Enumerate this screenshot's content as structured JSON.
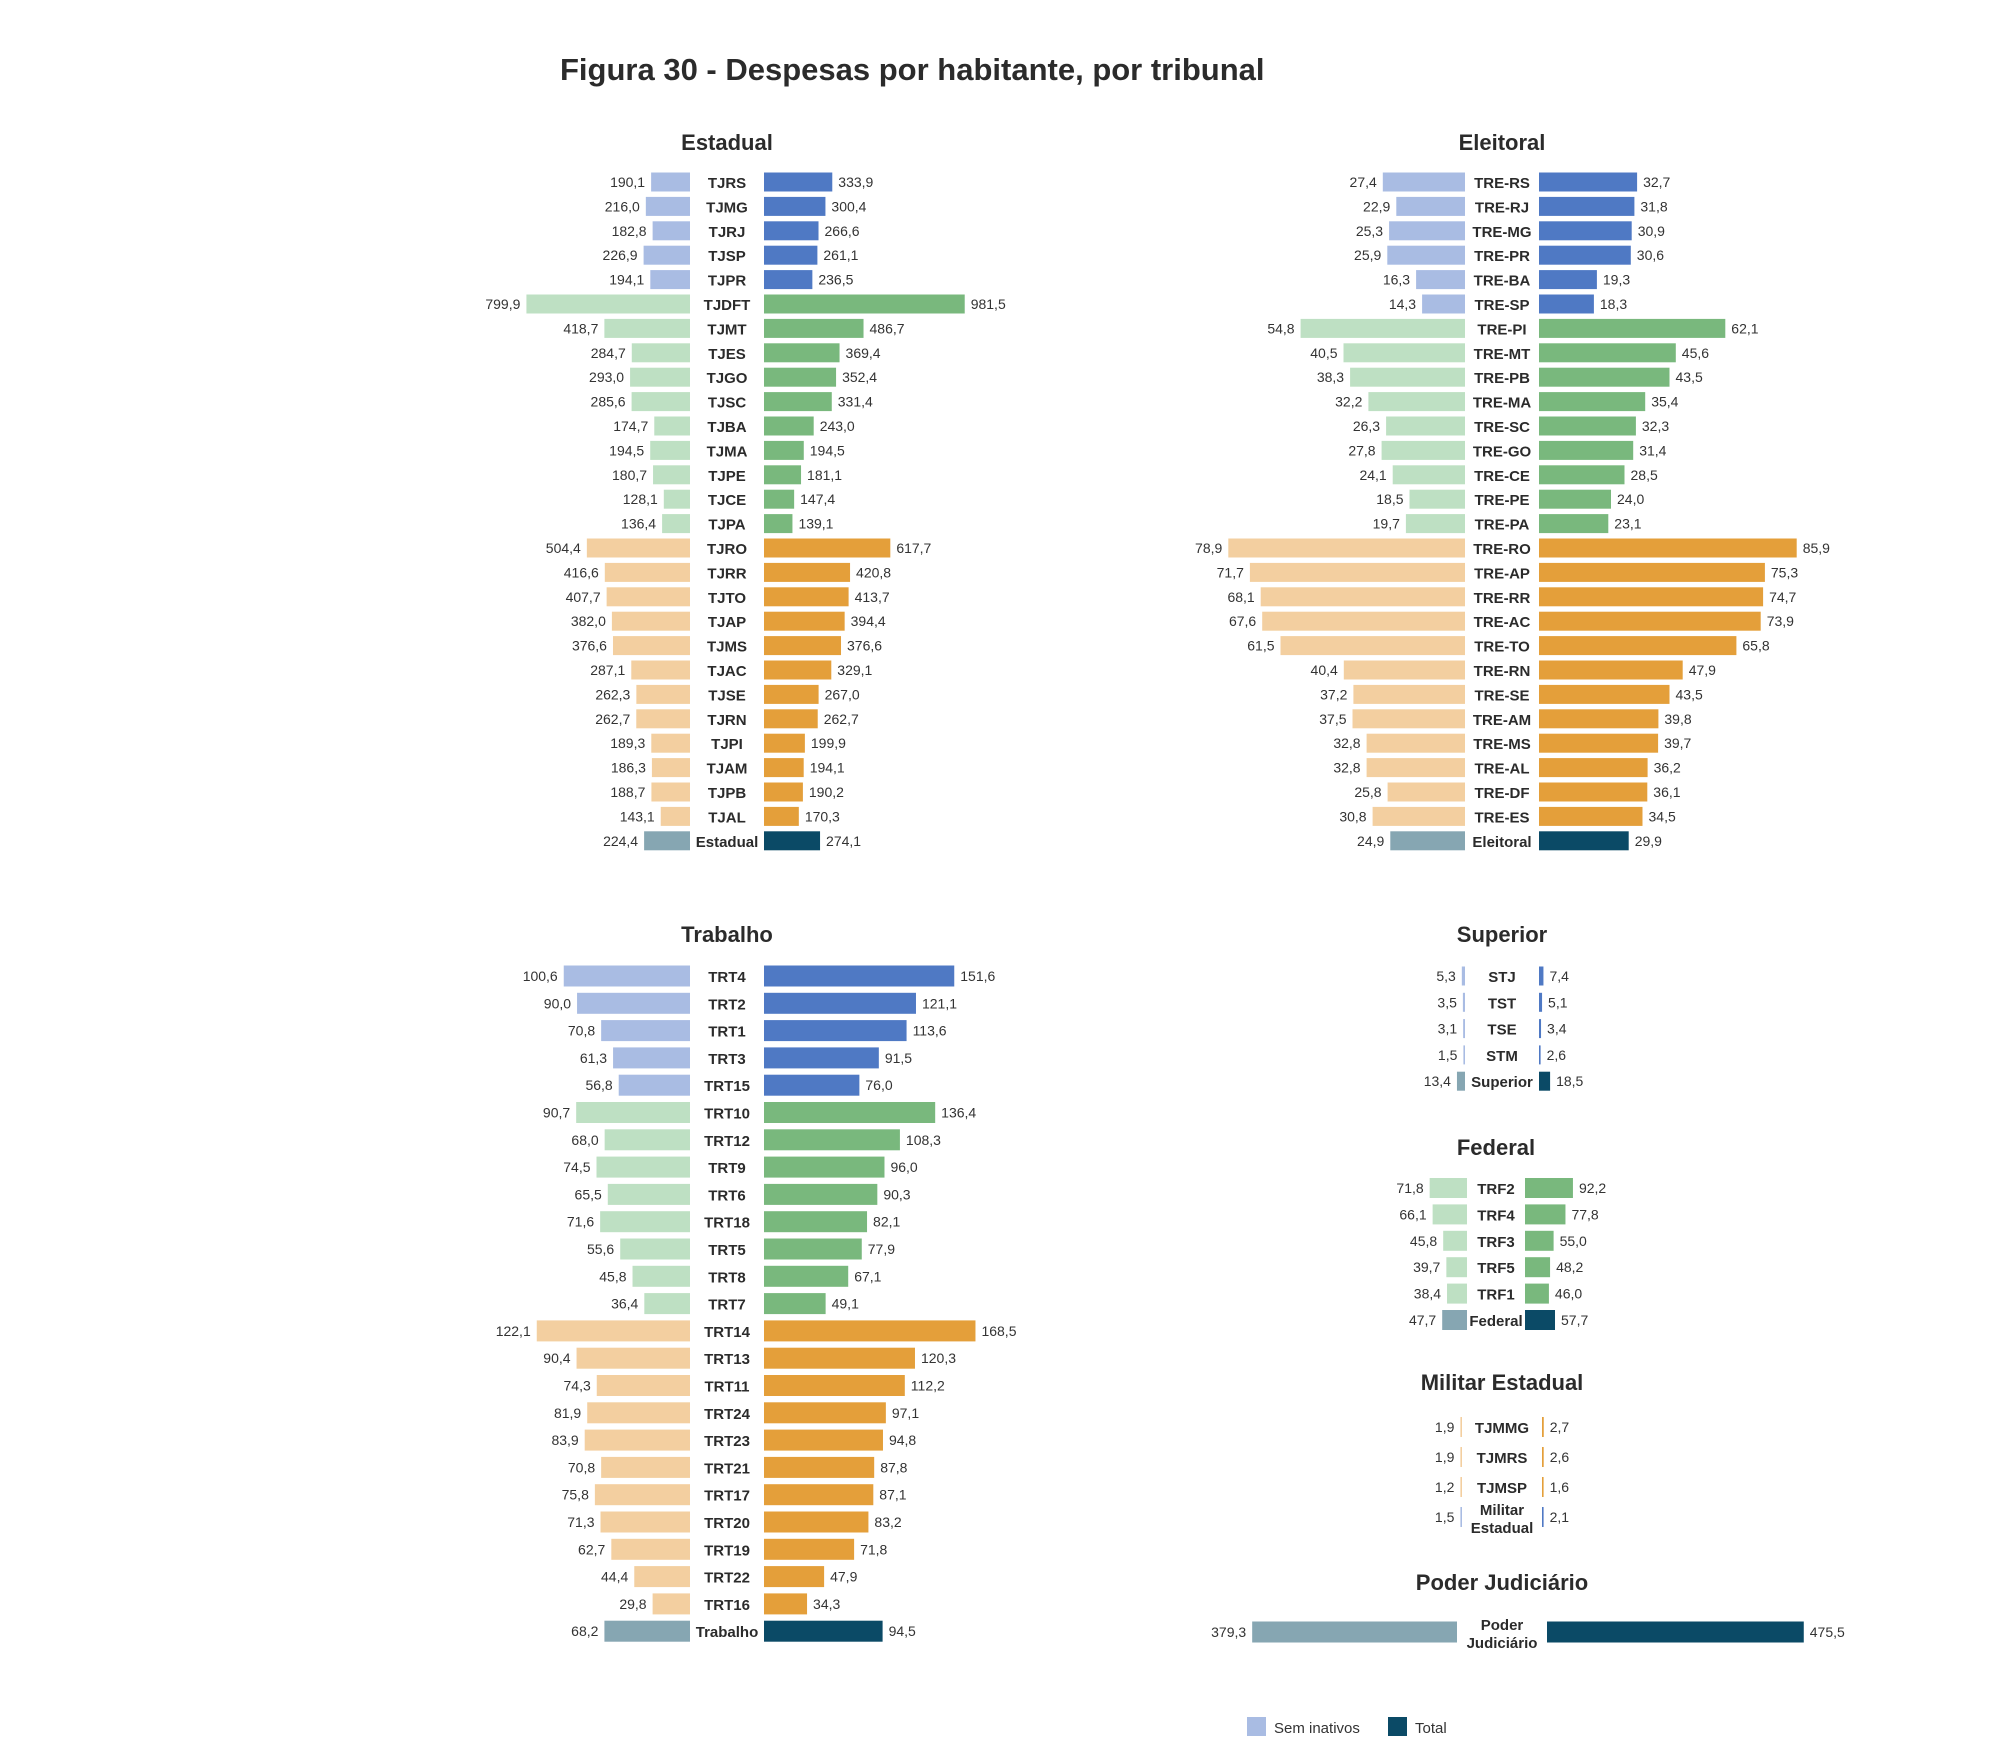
{
  "title": "Figura 30 - Despesas por habitante, por tribunal",
  "colors": {
    "light": {
      "blue": "#a9bce3",
      "green": "#bee0c3",
      "orange": "#f3cfa0",
      "total": "#86a6b2",
      "line": "#a9bce3"
    },
    "dark": {
      "blue": "#4f79c4",
      "green": "#79b87d",
      "orange": "#e49f3a",
      "total": "#0b4a66",
      "line": "#4f79c4"
    }
  },
  "legend": [
    {
      "label": "Sem inativos",
      "color": "#a9bce3"
    },
    {
      "label": "Total",
      "color": "#0b4a66"
    }
  ],
  "chart_data": [
    {
      "type": "bar",
      "title": "Estadual",
      "series": [
        {
          "name": "Sem inativos"
        },
        {
          "name": "Total"
        }
      ],
      "rows": [
        {
          "label": "TJRS",
          "sem": "190,1",
          "tot": "333,9",
          "group": "blue"
        },
        {
          "label": "TJMG",
          "sem": "216,0",
          "tot": "300,4",
          "group": "blue"
        },
        {
          "label": "TJRJ",
          "sem": "182,8",
          "tot": "266,6",
          "group": "blue"
        },
        {
          "label": "TJSP",
          "sem": "226,9",
          "tot": "261,1",
          "group": "blue"
        },
        {
          "label": "TJPR",
          "sem": "194,1",
          "tot": "236,5",
          "group": "blue"
        },
        {
          "label": "TJDFT",
          "sem": "799,9",
          "tot": "981,5",
          "group": "green"
        },
        {
          "label": "TJMT",
          "sem": "418,7",
          "tot": "486,7",
          "group": "green"
        },
        {
          "label": "TJES",
          "sem": "284,7",
          "tot": "369,4",
          "group": "green"
        },
        {
          "label": "TJGO",
          "sem": "293,0",
          "tot": "352,4",
          "group": "green"
        },
        {
          "label": "TJSC",
          "sem": "285,6",
          "tot": "331,4",
          "group": "green"
        },
        {
          "label": "TJBA",
          "sem": "174,7",
          "tot": "243,0",
          "group": "green"
        },
        {
          "label": "TJMA",
          "sem": "194,5",
          "tot": "194,5",
          "group": "green"
        },
        {
          "label": "TJPE",
          "sem": "180,7",
          "tot": "181,1",
          "group": "green"
        },
        {
          "label": "TJCE",
          "sem": "128,1",
          "tot": "147,4",
          "group": "green"
        },
        {
          "label": "TJPA",
          "sem": "136,4",
          "tot": "139,1",
          "group": "green"
        },
        {
          "label": "TJRO",
          "sem": "504,4",
          "tot": "617,7",
          "group": "orange"
        },
        {
          "label": "TJRR",
          "sem": "416,6",
          "tot": "420,8",
          "group": "orange"
        },
        {
          "label": "TJTO",
          "sem": "407,7",
          "tot": "413,7",
          "group": "orange"
        },
        {
          "label": "TJAP",
          "sem": "382,0",
          "tot": "394,4",
          "group": "orange"
        },
        {
          "label": "TJMS",
          "sem": "376,6",
          "tot": "376,6",
          "group": "orange"
        },
        {
          "label": "TJAC",
          "sem": "287,1",
          "tot": "329,1",
          "group": "orange"
        },
        {
          "label": "TJSE",
          "sem": "262,3",
          "tot": "267,0",
          "group": "orange"
        },
        {
          "label": "TJRN",
          "sem": "262,7",
          "tot": "262,7",
          "group": "orange"
        },
        {
          "label": "TJPI",
          "sem": "189,3",
          "tot": "199,9",
          "group": "orange"
        },
        {
          "label": "TJAM",
          "sem": "186,3",
          "tot": "194,1",
          "group": "orange"
        },
        {
          "label": "TJPB",
          "sem": "188,7",
          "tot": "190,2",
          "group": "orange"
        },
        {
          "label": "TJAL",
          "sem": "143,1",
          "tot": "170,3",
          "group": "orange"
        },
        {
          "label": "Estadual",
          "sem": "224,4",
          "tot": "274,1",
          "group": "total"
        }
      ]
    },
    {
      "type": "bar",
      "title": "Eleitoral",
      "series": [
        {
          "name": "Sem inativos"
        },
        {
          "name": "Total"
        }
      ],
      "rows": [
        {
          "label": "TRE-RS",
          "sem": "27,4",
          "tot": "32,7",
          "group": "blue"
        },
        {
          "label": "TRE-RJ",
          "sem": "22,9",
          "tot": "31,8",
          "group": "blue"
        },
        {
          "label": "TRE-MG",
          "sem": "25,3",
          "tot": "30,9",
          "group": "blue"
        },
        {
          "label": "TRE-PR",
          "sem": "25,9",
          "tot": "30,6",
          "group": "blue"
        },
        {
          "label": "TRE-BA",
          "sem": "16,3",
          "tot": "19,3",
          "group": "blue"
        },
        {
          "label": "TRE-SP",
          "sem": "14,3",
          "tot": "18,3",
          "group": "blue"
        },
        {
          "label": "TRE-PI",
          "sem": "54,8",
          "tot": "62,1",
          "group": "green"
        },
        {
          "label": "TRE-MT",
          "sem": "40,5",
          "tot": "45,6",
          "group": "green"
        },
        {
          "label": "TRE-PB",
          "sem": "38,3",
          "tot": "43,5",
          "group": "green"
        },
        {
          "label": "TRE-MA",
          "sem": "32,2",
          "tot": "35,4",
          "group": "green"
        },
        {
          "label": "TRE-SC",
          "sem": "26,3",
          "tot": "32,3",
          "group": "green"
        },
        {
          "label": "TRE-GO",
          "sem": "27,8",
          "tot": "31,4",
          "group": "green"
        },
        {
          "label": "TRE-CE",
          "sem": "24,1",
          "tot": "28,5",
          "group": "green"
        },
        {
          "label": "TRE-PE",
          "sem": "18,5",
          "tot": "24,0",
          "group": "green"
        },
        {
          "label": "TRE-PA",
          "sem": "19,7",
          "tot": "23,1",
          "group": "green"
        },
        {
          "label": "TRE-RO",
          "sem": "78,9",
          "tot": "85,9",
          "group": "orange"
        },
        {
          "label": "TRE-AP",
          "sem": "71,7",
          "tot": "75,3",
          "group": "orange"
        },
        {
          "label": "TRE-RR",
          "sem": "68,1",
          "tot": "74,7",
          "group": "orange"
        },
        {
          "label": "TRE-AC",
          "sem": "67,6",
          "tot": "73,9",
          "group": "orange"
        },
        {
          "label": "TRE-TO",
          "sem": "61,5",
          "tot": "65,8",
          "group": "orange"
        },
        {
          "label": "TRE-RN",
          "sem": "40,4",
          "tot": "47,9",
          "group": "orange"
        },
        {
          "label": "TRE-SE",
          "sem": "37,2",
          "tot": "43,5",
          "group": "orange"
        },
        {
          "label": "TRE-AM",
          "sem": "37,5",
          "tot": "39,8",
          "group": "orange"
        },
        {
          "label": "TRE-MS",
          "sem": "32,8",
          "tot": "39,7",
          "group": "orange"
        },
        {
          "label": "TRE-AL",
          "sem": "32,8",
          "tot": "36,2",
          "group": "orange"
        },
        {
          "label": "TRE-DF",
          "sem": "25,8",
          "tot": "36,1",
          "group": "orange"
        },
        {
          "label": "TRE-ES",
          "sem": "30,8",
          "tot": "34,5",
          "group": "orange"
        },
        {
          "label": "Eleitoral",
          "sem": "24,9",
          "tot": "29,9",
          "group": "total"
        }
      ]
    },
    {
      "type": "bar",
      "title": "Trabalho",
      "series": [
        {
          "name": "Sem inativos"
        },
        {
          "name": "Total"
        }
      ],
      "rows": [
        {
          "label": "TRT4",
          "sem": "100,6",
          "tot": "151,6",
          "group": "blue"
        },
        {
          "label": "TRT2",
          "sem": "90,0",
          "tot": "121,1",
          "group": "blue"
        },
        {
          "label": "TRT1",
          "sem": "70,8",
          "tot": "113,6",
          "group": "blue"
        },
        {
          "label": "TRT3",
          "sem": "61,3",
          "tot": "91,5",
          "group": "blue"
        },
        {
          "label": "TRT15",
          "sem": "56,8",
          "tot": "76,0",
          "group": "blue"
        },
        {
          "label": "TRT10",
          "sem": "90,7",
          "tot": "136,4",
          "group": "green"
        },
        {
          "label": "TRT12",
          "sem": "68,0",
          "tot": "108,3",
          "group": "green"
        },
        {
          "label": "TRT9",
          "sem": "74,5",
          "tot": "96,0",
          "group": "green"
        },
        {
          "label": "TRT6",
          "sem": "65,5",
          "tot": "90,3",
          "group": "green"
        },
        {
          "label": "TRT18",
          "sem": "71,6",
          "tot": "82,1",
          "group": "green"
        },
        {
          "label": "TRT5",
          "sem": "55,6",
          "tot": "77,9",
          "group": "green"
        },
        {
          "label": "TRT8",
          "sem": "45,8",
          "tot": "67,1",
          "group": "green"
        },
        {
          "label": "TRT7",
          "sem": "36,4",
          "tot": "49,1",
          "group": "green"
        },
        {
          "label": "TRT14",
          "sem": "122,1",
          "tot": "168,5",
          "group": "orange"
        },
        {
          "label": "TRT13",
          "sem": "90,4",
          "tot": "120,3",
          "group": "orange"
        },
        {
          "label": "TRT11",
          "sem": "74,3",
          "tot": "112,2",
          "group": "orange"
        },
        {
          "label": "TRT24",
          "sem": "81,9",
          "tot": "97,1",
          "group": "orange"
        },
        {
          "label": "TRT23",
          "sem": "83,9",
          "tot": "94,8",
          "group": "orange"
        },
        {
          "label": "TRT21",
          "sem": "70,8",
          "tot": "87,8",
          "group": "orange"
        },
        {
          "label": "TRT17",
          "sem": "75,8",
          "tot": "87,1",
          "group": "orange"
        },
        {
          "label": "TRT20",
          "sem": "71,3",
          "tot": "83,2",
          "group": "orange"
        },
        {
          "label": "TRT19",
          "sem": "62,7",
          "tot": "71,8",
          "group": "orange"
        },
        {
          "label": "TRT22",
          "sem": "44,4",
          "tot": "47,9",
          "group": "orange"
        },
        {
          "label": "TRT16",
          "sem": "29,8",
          "tot": "34,3",
          "group": "orange"
        },
        {
          "label": "Trabalho",
          "sem": "68,2",
          "tot": "94,5",
          "group": "total"
        }
      ]
    },
    {
      "type": "bar",
      "title": "Superior",
      "series": [
        {
          "name": "Sem inativos"
        },
        {
          "name": "Total"
        }
      ],
      "rows": [
        {
          "label": "STJ",
          "sem": "5,3",
          "tot": "7,4",
          "group": "line"
        },
        {
          "label": "TST",
          "sem": "3,5",
          "tot": "5,1",
          "group": "line"
        },
        {
          "label": "TSE",
          "sem": "3,1",
          "tot": "3,4",
          "group": "line"
        },
        {
          "label": "STM",
          "sem": "1,5",
          "tot": "2,6",
          "group": "line"
        },
        {
          "label": "Superior",
          "sem": "13,4",
          "tot": "18,5",
          "group": "total"
        }
      ]
    },
    {
      "type": "bar",
      "title": "Federal",
      "series": [
        {
          "name": "Sem inativos"
        },
        {
          "name": "Total"
        }
      ],
      "rows": [
        {
          "label": "TRF2",
          "sem": "71,8",
          "tot": "92,2",
          "group": "green"
        },
        {
          "label": "TRF4",
          "sem": "66,1",
          "tot": "77,8",
          "group": "green"
        },
        {
          "label": "TRF3",
          "sem": "45,8",
          "tot": "55,0",
          "group": "green"
        },
        {
          "label": "TRF5",
          "sem": "39,7",
          "tot": "48,2",
          "group": "green"
        },
        {
          "label": "TRF1",
          "sem": "38,4",
          "tot": "46,0",
          "group": "green"
        },
        {
          "label": "Federal",
          "sem": "47,7",
          "tot": "57,7",
          "group": "total"
        }
      ]
    },
    {
      "type": "bar",
      "title": "Militar Estadual",
      "series": [
        {
          "name": "Sem inativos"
        },
        {
          "name": "Total"
        }
      ],
      "rows": [
        {
          "label": "TJMMG",
          "sem": "1,9",
          "tot": "2,7",
          "group": "orange"
        },
        {
          "label": "TJMRS",
          "sem": "1,9",
          "tot": "2,6",
          "group": "orange"
        },
        {
          "label": "TJMSP",
          "sem": "1,2",
          "tot": "1,6",
          "group": "orange"
        },
        {
          "label": "Militar Estadual",
          "sem": "1,5",
          "tot": "2,1",
          "group": "line"
        }
      ]
    },
    {
      "type": "bar",
      "title": "Poder Judiciário",
      "series": [
        {
          "name": "Sem inativos"
        },
        {
          "name": "Total"
        }
      ],
      "rows": [
        {
          "label": "Poder Judiciário",
          "sem": "379,3",
          "tot": "475,5",
          "group": "total"
        }
      ]
    }
  ]
}
